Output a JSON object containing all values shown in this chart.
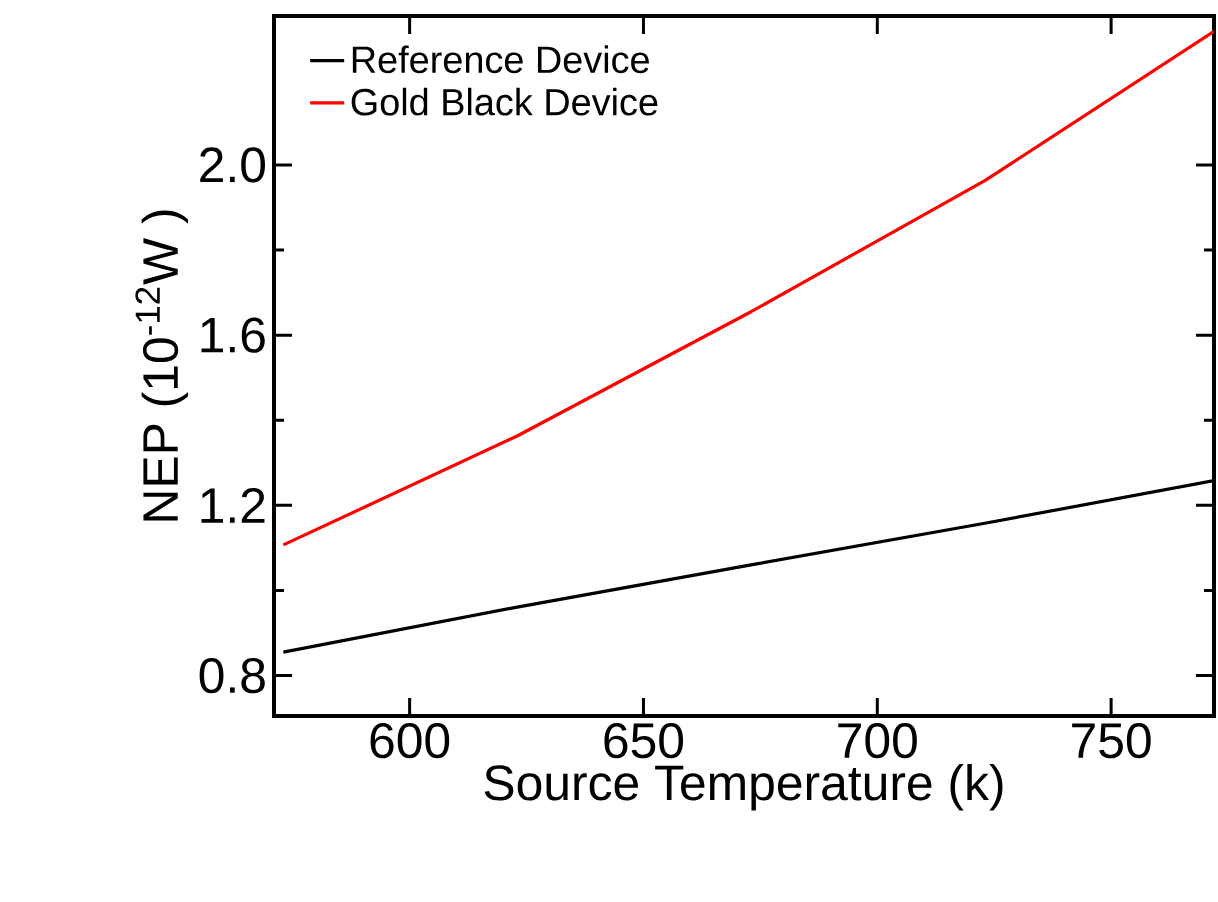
{
  "chart_data": {
    "type": "line",
    "xlabel": "Source Temperature (k)",
    "ylabel": "NEP (10$^{-12}$W )",
    "x": [
      573,
      623,
      673,
      723,
      772
    ],
    "series": [
      {
        "name": "Reference Device",
        "color": "#000000",
        "values": [
          0.855,
          0.961,
          1.06,
          1.158,
          1.258
        ]
      },
      {
        "name": "Gold Black Device",
        "color": "#ff0000",
        "values": [
          1.107,
          1.363,
          1.655,
          1.963,
          2.314
        ]
      }
    ],
    "xlim": [
      571,
      772
    ],
    "ylim": [
      0.705,
      2.35
    ],
    "xticks": [
      600,
      650,
      700,
      750
    ],
    "yticks": [
      {
        "value": 0.8,
        "label": "0.8"
      },
      {
        "value": 1.2,
        "label": "1.2"
      },
      {
        "value": 1.6,
        "label": "1.6"
      },
      {
        "value": 2.0,
        "label": "2.0"
      }
    ],
    "grid": false,
    "legend": "top left",
    "marker": "none",
    "line_style": "solid"
  }
}
